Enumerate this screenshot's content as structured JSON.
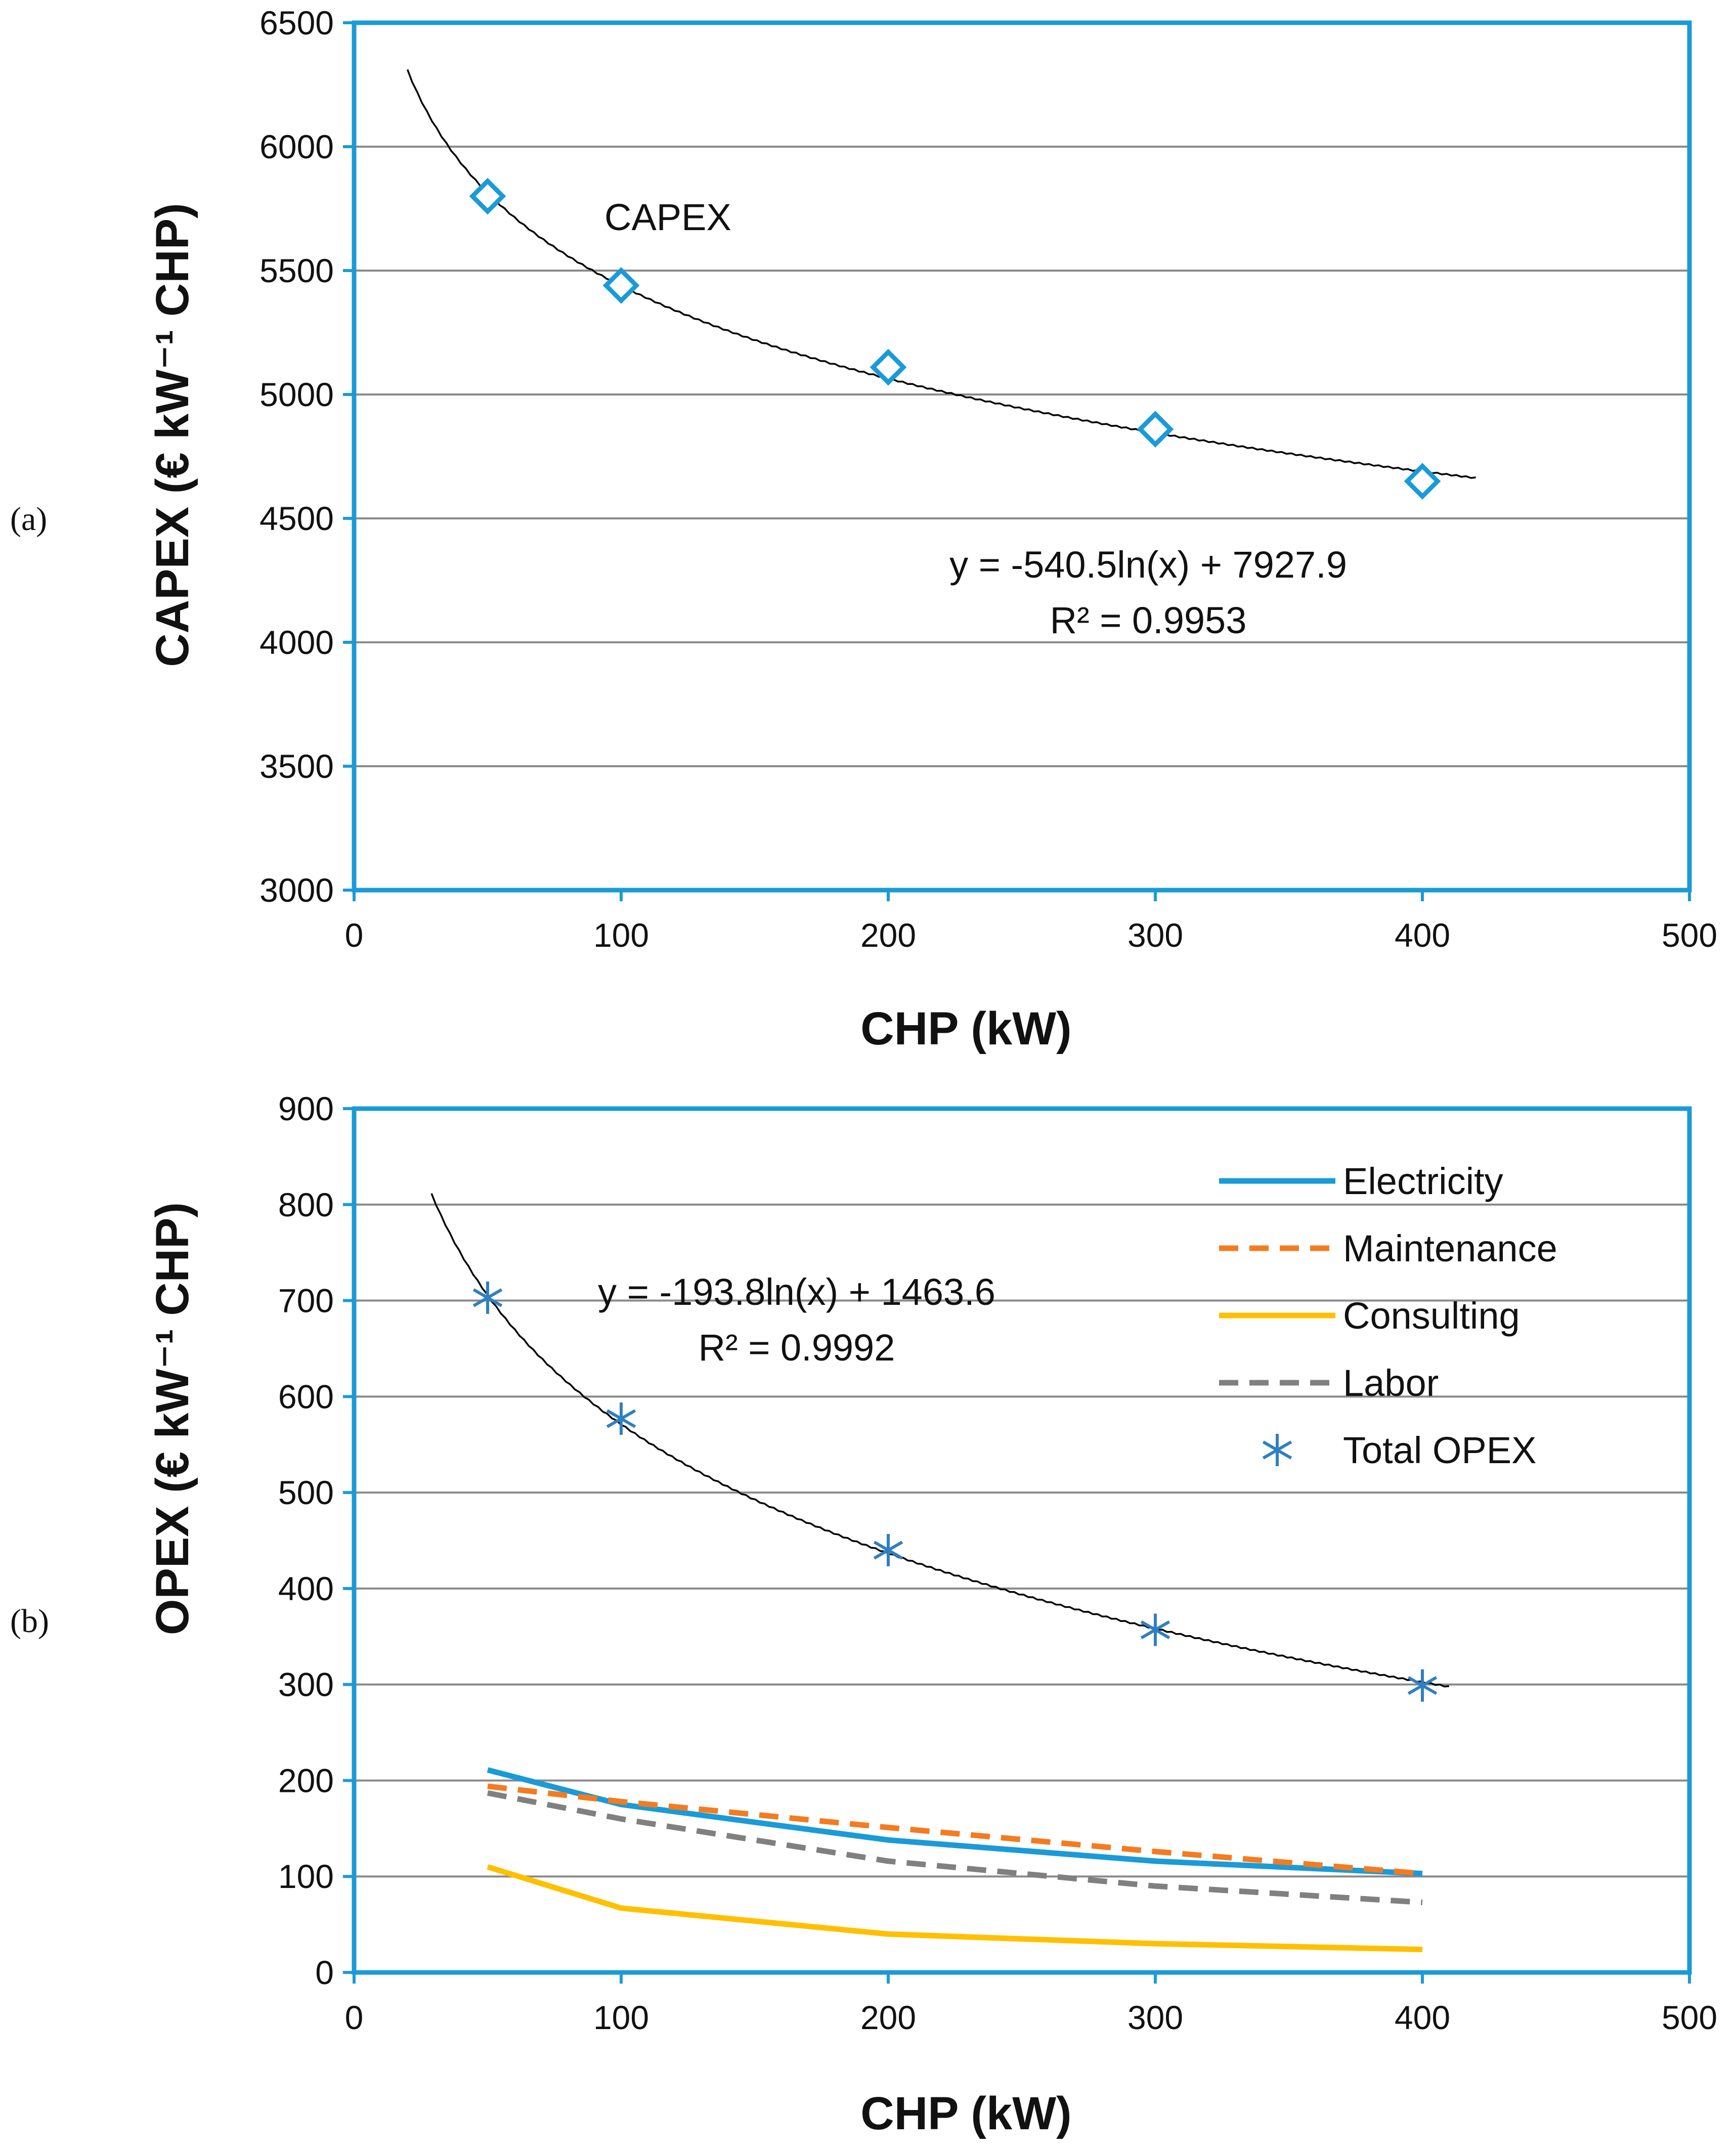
{
  "chart_data": [
    {
      "type": "scatter",
      "panel_label": "(a)",
      "xlabel": "CHP (kW)",
      "ylabel": "CAPEX (€ kW⁻¹ CHP)",
      "xlim": [
        0,
        500
      ],
      "ylim": [
        3000,
        6500
      ],
      "x_ticks": [
        0,
        100,
        200,
        300,
        400,
        500
      ],
      "y_ticks": [
        3000,
        3500,
        4000,
        4500,
        5000,
        5500,
        6000,
        6500
      ],
      "grid": "horizontal",
      "series": [
        {
          "name": "CAPEX",
          "marker": "diamond",
          "color": "#1a9bd7",
          "x": [
            50,
            100,
            200,
            300,
            400
          ],
          "y": [
            5800,
            5440,
            5110,
            4860,
            4650
          ]
        }
      ],
      "trendline": {
        "type": "log",
        "a": -540.5,
        "b": 7927.9,
        "x_range": [
          20,
          420
        ],
        "color": "#000000"
      },
      "annotations": {
        "series_label": "CAPEX",
        "equation": "y = -540.5ln(x) + 7927.9",
        "r2": "R² = 0.9953"
      },
      "frame_color": "#1a9bd7"
    },
    {
      "type": "line",
      "panel_label": "(b)",
      "xlabel": "CHP (kW)",
      "ylabel": "OPEX (€ kW⁻¹ CHP)",
      "xlim": [
        0,
        500
      ],
      "ylim": [
        0,
        900
      ],
      "x_ticks": [
        0,
        100,
        200,
        300,
        400,
        500
      ],
      "y_ticks": [
        0,
        100,
        200,
        300,
        400,
        500,
        600,
        700,
        800,
        900
      ],
      "grid": "horizontal",
      "x": [
        50,
        100,
        200,
        300,
        400
      ],
      "series": [
        {
          "name": "Electricity",
          "style": "solid",
          "color": "#1a9bd7",
          "values": [
            211,
            175,
            138,
            116,
            103
          ]
        },
        {
          "name": "Maintenance",
          "style": "dashed",
          "color": "#f47b20",
          "values": [
            194,
            178,
            151,
            126,
            103
          ]
        },
        {
          "name": "Consulting",
          "style": "solid",
          "color": "#ffc000",
          "values": [
            110,
            67,
            40,
            30,
            24
          ]
        },
        {
          "name": "Labor",
          "style": "dashed",
          "color": "#808080",
          "values": [
            187,
            160,
            116,
            90,
            73
          ]
        },
        {
          "name": "Total OPEX",
          "style": "marker",
          "marker": "star",
          "color": "#2f7fc1",
          "values": [
            703,
            577,
            440,
            357,
            299
          ]
        }
      ],
      "trendline": {
        "type": "log",
        "a": -193.8,
        "b": 1463.6,
        "x_range": [
          29,
          410
        ],
        "color": "#000000"
      },
      "annotations": {
        "equation": "y = -193.8ln(x) + 1463.6",
        "r2": "R² = 0.9992"
      },
      "legend_position": "top-right",
      "frame_color": "#1a9bd7"
    }
  ]
}
